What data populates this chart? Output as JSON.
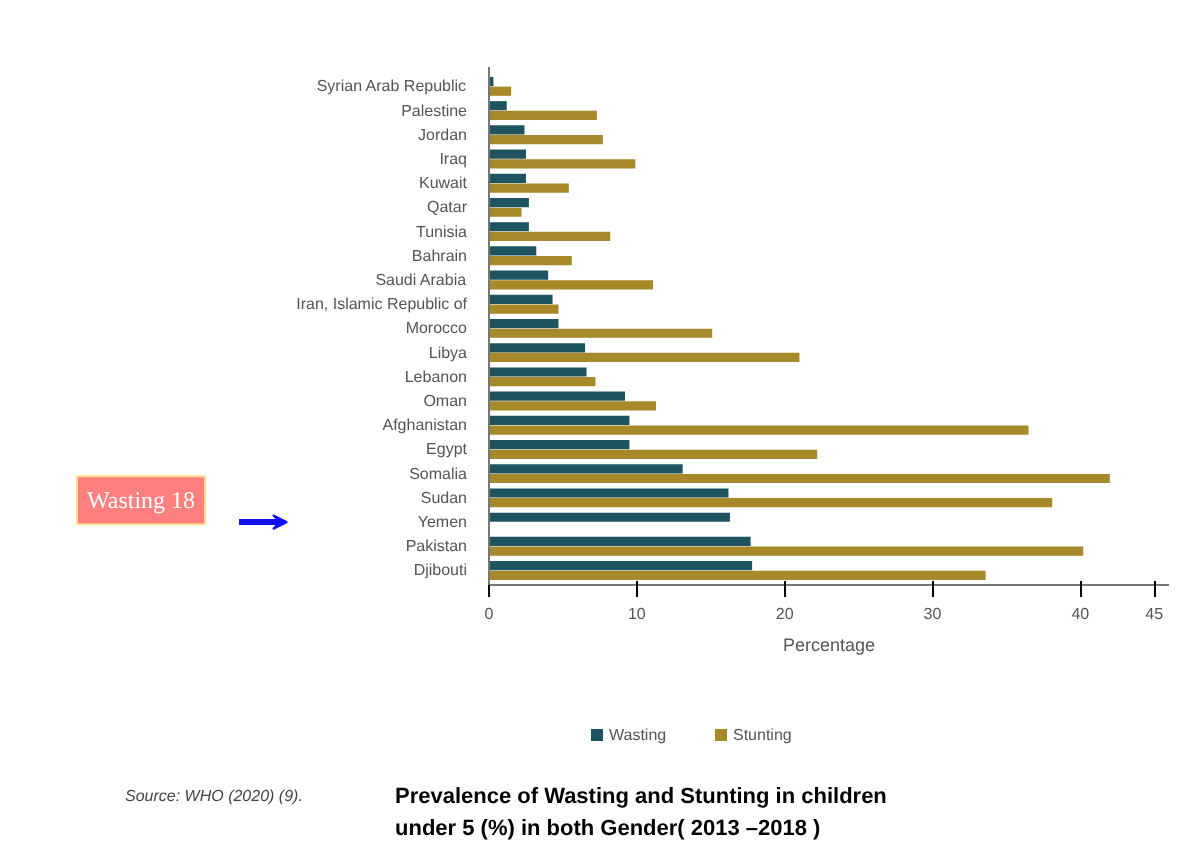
{
  "chart_data": {
    "type": "bar",
    "orientation": "horizontal",
    "title": "Prevalence of Wasting and Stunting in children under  5 (%) in both Gender(     2013  –2018 )",
    "xlabel": "Percentage",
    "categories": [
      "Syrian Arab Republic",
      "Palestine",
      "Jordan",
      "Iraq",
      "Kuwait",
      "Qatar",
      "Tunisia",
      "Bahrain",
      "Saudi Arabia",
      "Iran, Islamic Republic of",
      "Morocco",
      "Libya",
      "Lebanon",
      "Oman",
      "Afghanistan",
      "Egypt",
      "Somalia",
      "Sudan",
      "Yemen",
      "Pakistan",
      "Djibouti"
    ],
    "series": [
      {
        "name": "Wasting",
        "color": "#1e5460",
        "values": [
          0.3,
          1.2,
          2.4,
          2.5,
          2.5,
          2.7,
          2.7,
          3.2,
          4.0,
          4.3,
          4.7,
          6.5,
          6.6,
          9.2,
          9.5,
          9.5,
          13.1,
          16.2,
          16.3,
          17.7,
          17.8
        ]
      },
      {
        "name": "Stunting",
        "color": "#a8892a",
        "values": [
          1.5,
          7.3,
          7.7,
          9.9,
          5.4,
          2.2,
          8.2,
          5.6,
          11.1,
          4.7,
          15.1,
          21.0,
          7.2,
          11.3,
          36.5,
          22.2,
          42.0,
          38.1,
          null,
          40.2,
          33.6
        ]
      }
    ],
    "xlim": [
      0,
      46
    ],
    "xticks": [
      0,
      10,
      20,
      30,
      40,
      45
    ],
    "legend": "bottom",
    "grid": false,
    "annotations": [
      "Wasting 18",
      "Source: WHO (2020) (9)."
    ]
  }
}
